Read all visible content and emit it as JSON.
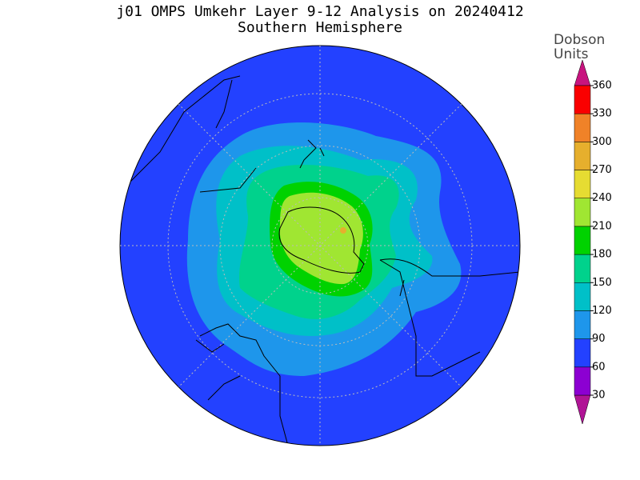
{
  "title": "j01 OMPS Umkehr Layer 9-12 Analysis on 20240412",
  "subtitle": "Southern Hemisphere",
  "colorbar": {
    "units": [
      "Dobson",
      "Units"
    ],
    "ticks": [
      30,
      60,
      90,
      120,
      150,
      180,
      210,
      240,
      270,
      300,
      330,
      360
    ],
    "colors": [
      "#8c00d2",
      "#2341ff",
      "#1e96eb",
      "#00c0c8",
      "#00d28c",
      "#00d200",
      "#a0e632",
      "#e6dc32",
      "#e6af2d",
      "#f08228",
      "#fa0000"
    ],
    "under_color": "#b01496",
    "over_color": "#c8147f"
  }
}
